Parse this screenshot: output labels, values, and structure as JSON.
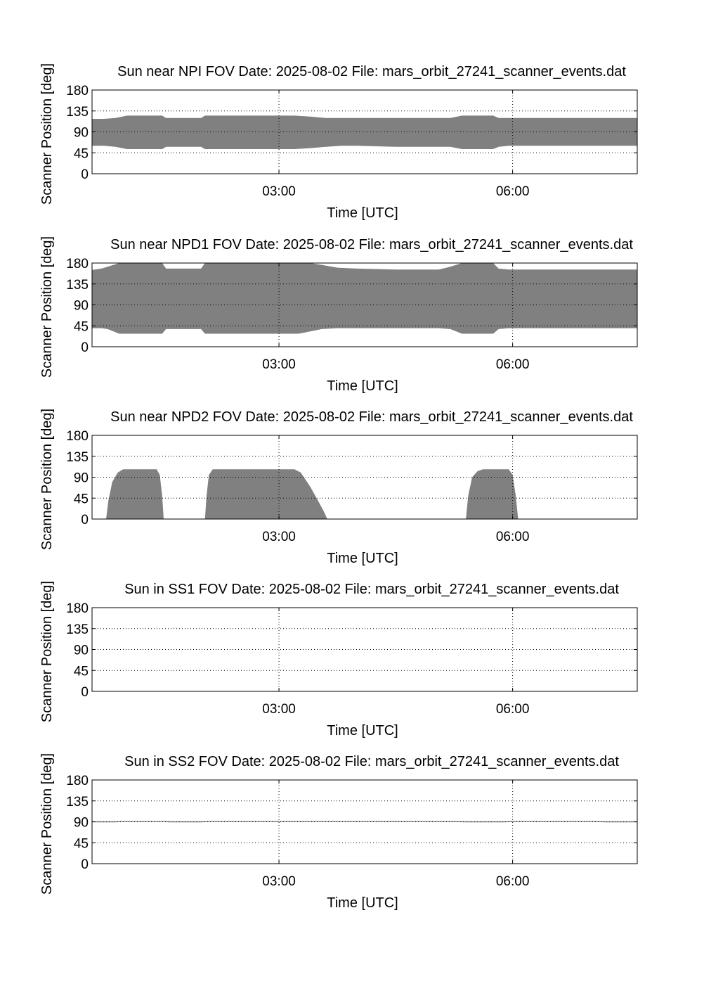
{
  "figure": {
    "date_prefix": "Date:",
    "file_prefix": "File:"
  },
  "chart_data": [
    {
      "type": "area",
      "title": "Sun near NPI FOV",
      "date": "2025-08-02",
      "file": "mars_orbit_27241_scanner_events.dat",
      "xlabel": "Time [UTC]",
      "ylabel": "Scanner Position [deg]",
      "xlim_hours": [
        0.6,
        7.6
      ],
      "ylim": [
        0,
        180
      ],
      "yticks": [
        0,
        45,
        90,
        135,
        180
      ],
      "xticks": [
        {
          "h": 3,
          "label": "03:00"
        },
        {
          "h": 6,
          "label": "06:00"
        }
      ],
      "grid": true,
      "fill_color": "#808080",
      "x": [
        0.6,
        0.75,
        0.9,
        1.05,
        1.2,
        1.45,
        1.5,
        1.55,
        1.65,
        1.9,
        2.0,
        2.05,
        2.15,
        2.5,
        3.0,
        3.2,
        3.4,
        3.6,
        3.8,
        4.0,
        4.5,
        5.0,
        5.2,
        5.35,
        5.45,
        5.6,
        5.75,
        5.82,
        5.95,
        6.2,
        6.5,
        6.8,
        7.1,
        7.4,
        7.6
      ],
      "lower": [
        60,
        60,
        58,
        53,
        53,
        53,
        53,
        58,
        58,
        58,
        58,
        53,
        53,
        53,
        53,
        53,
        55,
        58,
        60,
        60,
        58,
        58,
        58,
        53,
        53,
        53,
        53,
        58,
        60,
        60,
        60,
        60,
        60,
        60,
        60
      ],
      "upper": [
        118,
        118,
        120,
        125,
        125,
        125,
        125,
        120,
        120,
        120,
        120,
        125,
        125,
        125,
        125,
        125,
        123,
        120,
        120,
        120,
        120,
        120,
        120,
        125,
        125,
        125,
        125,
        120,
        120,
        120,
        120,
        120,
        120,
        120,
        120
      ]
    },
    {
      "type": "area",
      "title": "Sun near NPD1 FOV",
      "date": "2025-08-02",
      "file": "mars_orbit_27241_scanner_events.dat",
      "xlabel": "Time [UTC]",
      "ylabel": "Scanner Position [deg]",
      "xlim_hours": [
        0.6,
        7.6
      ],
      "ylim": [
        0,
        180
      ],
      "yticks": [
        0,
        45,
        90,
        135,
        180
      ],
      "xticks": [
        {
          "h": 3,
          "label": "03:00"
        },
        {
          "h": 6,
          "label": "06:00"
        }
      ],
      "grid": true,
      "fill_color": "#808080",
      "x": [
        0.6,
        0.72,
        0.8,
        0.95,
        1.2,
        1.45,
        1.5,
        1.55,
        1.65,
        1.9,
        2.0,
        2.05,
        2.15,
        2.5,
        3.0,
        3.25,
        3.4,
        3.55,
        3.75,
        4.0,
        4.5,
        4.9,
        5.05,
        5.2,
        5.35,
        5.5,
        5.75,
        5.82,
        5.95,
        6.2,
        6.5,
        7.0,
        7.6
      ],
      "lower": [
        40,
        40,
        38,
        28,
        28,
        28,
        28,
        38,
        38,
        38,
        38,
        28,
        28,
        28,
        28,
        28,
        33,
        38,
        40,
        40,
        40,
        40,
        40,
        38,
        28,
        28,
        28,
        38,
        40,
        40,
        40,
        40,
        40
      ],
      "upper": [
        165,
        168,
        172,
        180,
        180,
        180,
        180,
        168,
        168,
        168,
        168,
        180,
        180,
        180,
        180,
        180,
        180,
        176,
        170,
        168,
        166,
        166,
        166,
        172,
        180,
        180,
        180,
        168,
        166,
        166,
        166,
        166,
        166
      ]
    },
    {
      "type": "area",
      "title": "Sun near NPD2 FOV",
      "date": "2025-08-02",
      "file": "mars_orbit_27241_scanner_events.dat",
      "xlabel": "Time [UTC]",
      "ylabel": "Scanner Position [deg]",
      "xlim_hours": [
        0.6,
        7.6
      ],
      "ylim": [
        0,
        180
      ],
      "yticks": [
        0,
        45,
        90,
        135,
        180
      ],
      "xticks": [
        {
          "h": 3,
          "label": "03:00"
        },
        {
          "h": 6,
          "label": "06:00"
        }
      ],
      "grid": true,
      "fill_color": "#808080",
      "segments": [
        {
          "x": [
            0.78,
            0.81,
            0.86,
            0.93,
            1.0,
            1.43,
            1.47,
            1.5,
            1.52
          ],
          "upper": [
            0,
            40,
            80,
            100,
            107,
            107,
            95,
            50,
            0
          ]
        },
        {
          "x": [
            2.05,
            2.07,
            2.1,
            2.15,
            3.2,
            3.28,
            3.4,
            3.5,
            3.58,
            3.62
          ],
          "upper": [
            0,
            50,
            95,
            107,
            107,
            100,
            70,
            40,
            15,
            0
          ]
        },
        {
          "x": [
            5.4,
            5.43,
            5.48,
            5.55,
            5.62,
            5.95,
            6.0,
            6.04,
            6.07
          ],
          "upper": [
            0,
            50,
            90,
            103,
            107,
            107,
            95,
            50,
            0
          ]
        }
      ]
    },
    {
      "type": "area",
      "title": "Sun in SS1 FOV",
      "date": "2025-08-02",
      "file": "mars_orbit_27241_scanner_events.dat",
      "xlabel": "Time [UTC]",
      "ylabel": "Scanner Position [deg]",
      "xlim_hours": [
        0.6,
        7.6
      ],
      "ylim": [
        0,
        180
      ],
      "yticks": [
        0,
        45,
        90,
        135,
        180
      ],
      "xticks": [
        {
          "h": 3,
          "label": "03:00"
        },
        {
          "h": 6,
          "label": "06:00"
        }
      ],
      "grid": true,
      "fill_color": "#808080",
      "x": [],
      "lower": [],
      "upper": []
    },
    {
      "type": "area",
      "title": "Sun in SS2 FOV",
      "date": "2025-08-02",
      "file": "mars_orbit_27241_scanner_events.dat",
      "xlabel": "Time [UTC]",
      "ylabel": "Scanner Position [deg]",
      "xlim_hours": [
        0.6,
        7.6
      ],
      "ylim": [
        0,
        180
      ],
      "yticks": [
        0,
        45,
        90,
        135,
        180
      ],
      "xticks": [
        {
          "h": 3,
          "label": "03:00"
        },
        {
          "h": 6,
          "label": "06:00"
        }
      ],
      "grid": true,
      "fill_color": "#808080",
      "x": [
        0.6,
        0.9,
        1.0,
        1.5,
        1.6,
        2.0,
        2.1,
        5.2,
        5.4,
        5.9,
        6.0,
        7.0,
        7.2,
        7.6
      ],
      "lower": [
        89,
        89,
        90,
        90,
        89,
        89,
        90,
        90,
        89,
        89,
        90,
        90,
        89,
        89
      ],
      "upper": [
        91,
        91,
        92,
        92,
        91,
        91,
        92,
        92,
        91,
        91,
        92,
        92,
        91,
        91
      ]
    }
  ]
}
